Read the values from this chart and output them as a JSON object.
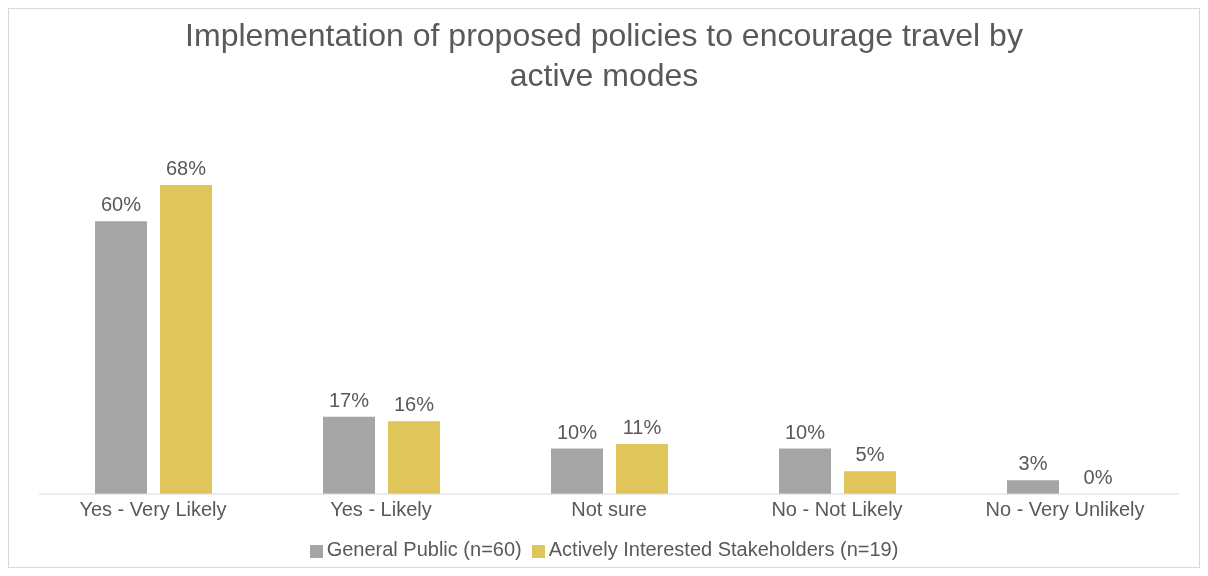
{
  "chart_data": {
    "type": "bar",
    "title": "Implementation of proposed policies to encourage travel by active modes",
    "categories": [
      "Yes - Very Likely",
      "Yes - Likely",
      "Not sure",
      "No - Not Likely",
      "No - Very Unlikely"
    ],
    "series": [
      {
        "name": "General Public (n=60)",
        "color": "#a5a5a5",
        "values": [
          60,
          17,
          10,
          10,
          3
        ],
        "value_labels": [
          "60%",
          "17%",
          "10%",
          "10%",
          "3%"
        ]
      },
      {
        "name": "Actively Interested Stakeholders (n=19)",
        "color": "#dfc55a",
        "values": [
          68,
          16,
          11,
          5,
          0
        ],
        "value_labels": [
          "68%",
          "16%",
          "11%",
          "5%",
          "0%"
        ]
      }
    ],
    "legend": "bottom",
    "grid": false
  }
}
